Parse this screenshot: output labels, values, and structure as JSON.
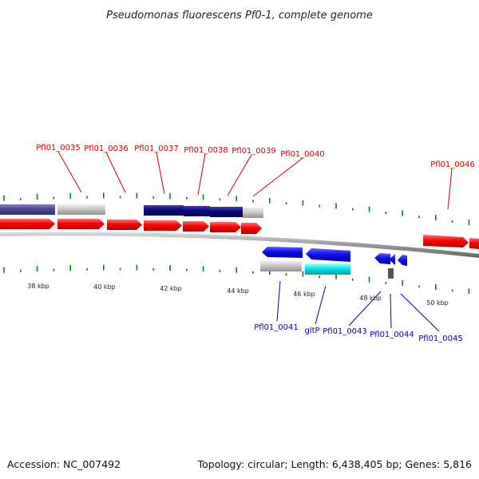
{
  "title": "Pseudomonas fluorescens Pf0-1, complete genome",
  "footer": {
    "accession": "Accession: NC_007492",
    "summary": "Topology: circular; Length: 6,438,405 bp; Genes: 5,816"
  },
  "colors": {
    "cds_red": "#ff0000",
    "dark_navy": "#0a0a7a",
    "slate_blue": "#4a4a90",
    "light_gray": "#c8c8c8",
    "blue": "#1010ee",
    "cyan": "#00e8e8",
    "tick_green": "#008800",
    "backbone_gray": "#999999",
    "label_red": "#cc0000",
    "label_blue": "#0000aa"
  },
  "kbp_labels": [
    "38 kbp",
    "40 kbp",
    "42 kbp",
    "44 kbp",
    "46 kbp",
    "48 kbp",
    "50 kbp"
  ],
  "top_genes": [
    {
      "label": "Pfl01_0035"
    },
    {
      "label": "Pfl01_0036"
    },
    {
      "label": "Pfl01_0037"
    },
    {
      "label": "Pfl01_0038"
    },
    {
      "label": "Pfl01_0039"
    },
    {
      "label": "Pfl01_0040"
    },
    {
      "label": "Pfl01_0046"
    }
  ],
  "bottom_genes": [
    {
      "label": "Pfl01_0041"
    },
    {
      "label": "gltP"
    },
    {
      "label": "Pfl01_0043"
    },
    {
      "label": "Pfl01_0044"
    },
    {
      "label": "Pfl01_0045"
    }
  ]
}
